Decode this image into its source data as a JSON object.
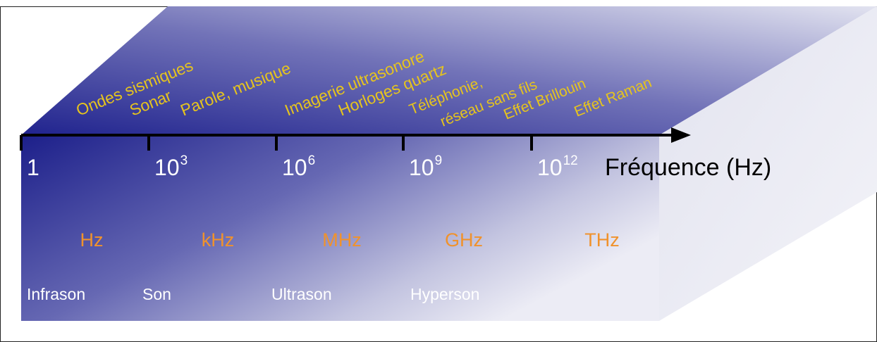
{
  "axis": {
    "label": "Fréquence (Hz)",
    "ticks": [
      {
        "base": "1",
        "exp": ""
      },
      {
        "base": "10",
        "exp": "3"
      },
      {
        "base": "10",
        "exp": "6"
      },
      {
        "base": "10",
        "exp": "9"
      },
      {
        "base": "10",
        "exp": "12"
      }
    ]
  },
  "applications": [
    "Ondes sismiques",
    "Sonar",
    "Parole, musique",
    "Imagerie ultrasonore",
    "Horloges quartz",
    "Téléphonie,",
    "réseau sans fils",
    "Effet Brillouin",
    "Effet Raman"
  ],
  "units": [
    "Hz",
    "kHz",
    "MHz",
    "GHz",
    "THz"
  ],
  "domains": [
    "Infrason",
    "Son",
    "Ultrason",
    "Hyperson"
  ],
  "colors": {
    "dark_blue": "#1c1f8a",
    "light_end": "#ececf5",
    "application_text": "#e6c41e",
    "unit_text": "#f0922c",
    "tick_text": "#ffffff",
    "axis": "#000000"
  }
}
